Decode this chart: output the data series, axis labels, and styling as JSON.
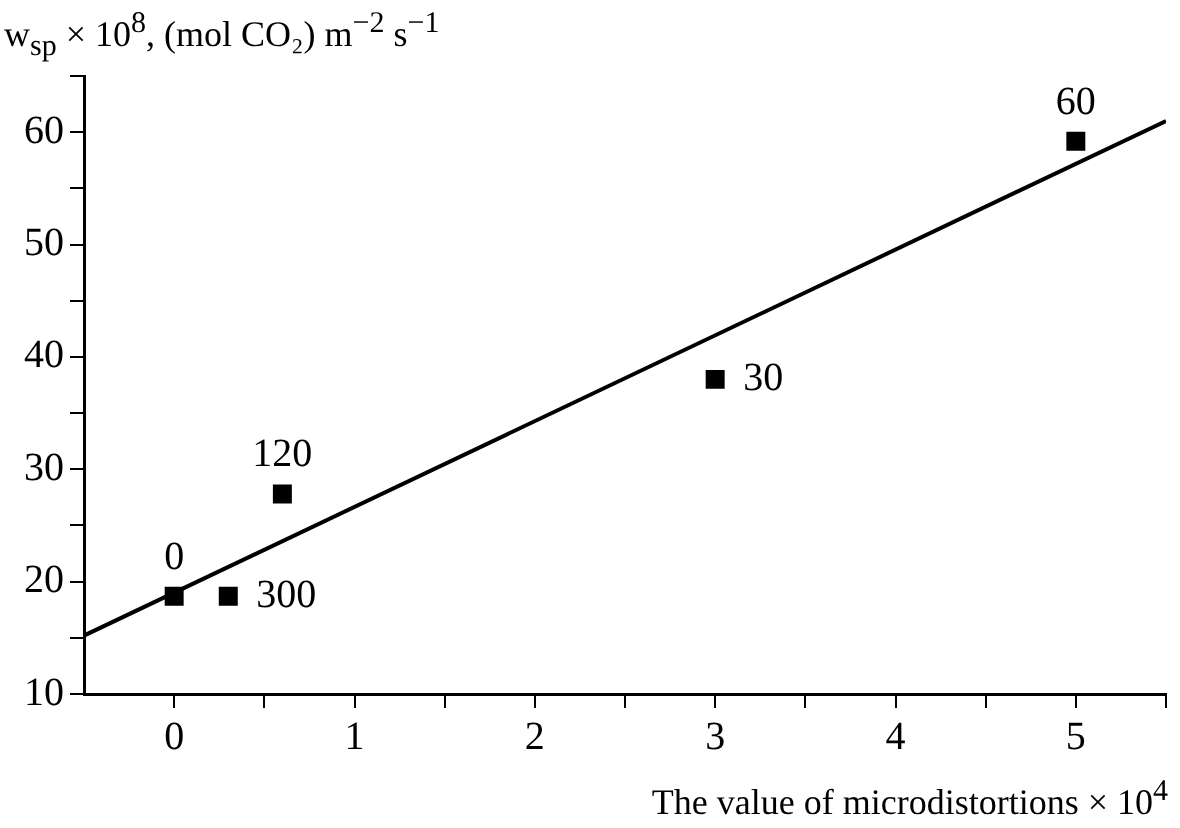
{
  "chart_data": {
    "type": "scatter",
    "ylabel": "w$_{sp}$ × 10$^{8}$, (mol CO₂) m$^{−2}$ s$^{−1}$",
    "xlabel": "The value of microdistortions × 10$^{4}$",
    "series": [
      {
        "color": "#000000",
        "marker": "square",
        "x": [
          0,
          0.3,
          0.6,
          3,
          5
        ],
        "values": [
          18.7,
          18.7,
          27.8,
          38.0,
          59.2
        ]
      },
      {
        "type": "line",
        "color": "#000000",
        "marker": "none",
        "line_style": "solid",
        "x": [
          -0.5,
          5.5
        ],
        "values": [
          15.2,
          61.0
        ]
      }
    ],
    "annotations": [
      {
        "text": "0",
        "x": 0,
        "y": 18.7
      },
      {
        "text": "300",
        "x": 0.3,
        "y": 18.7
      },
      {
        "text": "120",
        "x": 0.6,
        "y": 27.8
      },
      {
        "text": "30",
        "x": 3,
        "y": 38.0
      },
      {
        "text": "60",
        "x": 5,
        "y": 59.2
      }
    ],
    "xlim": [
      -0.5,
      5.5
    ],
    "xticks": [
      0,
      {
        "value": 0.5,
        "label": null
      },
      1,
      {
        "value": 1.5,
        "label": null
      },
      2,
      {
        "value": 2.5,
        "label": null
      },
      3,
      {
        "value": 3.5,
        "label": null
      },
      4,
      {
        "value": 4.5,
        "label": null
      },
      5,
      {
        "value": 5.5,
        "label": null
      }
    ],
    "ylim": [
      10,
      65
    ],
    "yticks": [
      10,
      {
        "value": 15,
        "label": null
      },
      20,
      {
        "value": 25,
        "label": null
      },
      30,
      {
        "value": 35,
        "label": null
      },
      40,
      {
        "value": 45,
        "label": null
      },
      50,
      {
        "value": 55,
        "label": null
      },
      60,
      {
        "value": 65,
        "label": null
      }
    ],
    "grid": false,
    "legend": false
  }
}
